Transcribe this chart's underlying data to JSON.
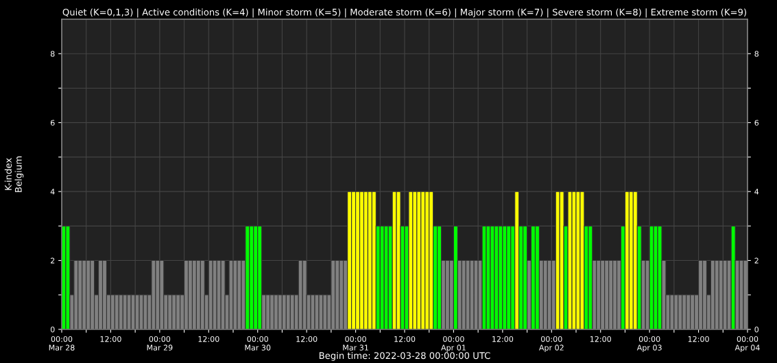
{
  "chart_data": {
    "type": "bar",
    "title": "Quiet (K=0,1,3) | Active conditions (K=4) | Minor storm (K=5) | Moderate storm (K=6) | Major storm (K=7) | Severe storm (K=8) | Extreme storm (K=9)",
    "ylabel": "K-index\nBelgium",
    "xlabel": "Begin time: 2022-03-28 00:00:00 UTC",
    "x": [
      "2022-03-28T00:00",
      "2022-03-28T01:00",
      "2022-03-28T02:00",
      "2022-03-28T03:00",
      "2022-03-28T04:00",
      "2022-03-28T05:00",
      "2022-03-28T06:00",
      "2022-03-28T07:00",
      "2022-03-28T08:00",
      "2022-03-28T09:00",
      "2022-03-28T10:00",
      "2022-03-28T11:00",
      "2022-03-28T12:00",
      "2022-03-28T13:00",
      "2022-03-28T14:00",
      "2022-03-28T15:00",
      "2022-03-28T16:00",
      "2022-03-28T17:00",
      "2022-03-28T18:00",
      "2022-03-28T19:00",
      "2022-03-28T20:00",
      "2022-03-28T21:00",
      "2022-03-28T22:00",
      "2022-03-28T23:00",
      "2022-03-29T00:00",
      "2022-03-29T01:00",
      "2022-03-29T02:00",
      "2022-03-29T03:00",
      "2022-03-29T04:00",
      "2022-03-29T05:00",
      "2022-03-29T06:00",
      "2022-03-29T07:00",
      "2022-03-29T08:00",
      "2022-03-29T09:00",
      "2022-03-29T10:00",
      "2022-03-29T11:00",
      "2022-03-29T12:00",
      "2022-03-29T13:00",
      "2022-03-29T14:00",
      "2022-03-29T15:00",
      "2022-03-29T16:00",
      "2022-03-29T17:00",
      "2022-03-29T18:00",
      "2022-03-29T19:00",
      "2022-03-29T20:00",
      "2022-03-29T21:00",
      "2022-03-29T22:00",
      "2022-03-29T23:00",
      "2022-03-30T00:00",
      "2022-03-30T01:00",
      "2022-03-30T02:00",
      "2022-03-30T03:00",
      "2022-03-30T04:00",
      "2022-03-30T05:00",
      "2022-03-30T06:00",
      "2022-03-30T07:00",
      "2022-03-30T08:00",
      "2022-03-30T09:00",
      "2022-03-30T10:00",
      "2022-03-30T11:00",
      "2022-03-30T12:00",
      "2022-03-30T13:00",
      "2022-03-30T14:00",
      "2022-03-30T15:00",
      "2022-03-30T16:00",
      "2022-03-30T17:00",
      "2022-03-30T18:00",
      "2022-03-30T19:00",
      "2022-03-30T20:00",
      "2022-03-30T21:00",
      "2022-03-30T22:00",
      "2022-03-30T23:00",
      "2022-03-31T00:00",
      "2022-03-31T01:00",
      "2022-03-31T02:00",
      "2022-03-31T03:00",
      "2022-03-31T04:00",
      "2022-03-31T05:00",
      "2022-03-31T06:00",
      "2022-03-31T07:00",
      "2022-03-31T08:00",
      "2022-03-31T09:00",
      "2022-03-31T10:00",
      "2022-03-31T11:00",
      "2022-03-31T12:00",
      "2022-03-31T13:00",
      "2022-03-31T14:00",
      "2022-03-31T15:00",
      "2022-03-31T16:00",
      "2022-03-31T17:00",
      "2022-03-31T18:00",
      "2022-03-31T19:00",
      "2022-03-31T20:00",
      "2022-03-31T21:00",
      "2022-03-31T22:00",
      "2022-03-31T23:00",
      "2022-04-01T00:00",
      "2022-04-01T01:00",
      "2022-04-01T02:00",
      "2022-04-01T03:00",
      "2022-04-01T04:00",
      "2022-04-01T05:00",
      "2022-04-01T06:00",
      "2022-04-01T07:00",
      "2022-04-01T08:00",
      "2022-04-01T09:00",
      "2022-04-01T10:00",
      "2022-04-01T11:00",
      "2022-04-01T12:00",
      "2022-04-01T13:00",
      "2022-04-01T14:00",
      "2022-04-01T15:00",
      "2022-04-01T16:00",
      "2022-04-01T17:00",
      "2022-04-01T18:00",
      "2022-04-01T19:00",
      "2022-04-01T20:00",
      "2022-04-01T21:00",
      "2022-04-01T22:00",
      "2022-04-01T23:00",
      "2022-04-02T00:00",
      "2022-04-02T01:00",
      "2022-04-02T02:00",
      "2022-04-02T03:00",
      "2022-04-02T04:00",
      "2022-04-02T05:00",
      "2022-04-02T06:00",
      "2022-04-02T07:00",
      "2022-04-02T08:00",
      "2022-04-02T09:00",
      "2022-04-02T10:00",
      "2022-04-02T11:00",
      "2022-04-02T12:00",
      "2022-04-02T13:00",
      "2022-04-02T14:00",
      "2022-04-02T15:00",
      "2022-04-02T16:00",
      "2022-04-02T17:00",
      "2022-04-02T18:00",
      "2022-04-02T19:00",
      "2022-04-02T20:00",
      "2022-04-02T21:00",
      "2022-04-02T22:00",
      "2022-04-02T23:00",
      "2022-04-03T00:00",
      "2022-04-03T01:00",
      "2022-04-03T02:00",
      "2022-04-03T03:00",
      "2022-04-03T04:00",
      "2022-04-03T05:00",
      "2022-04-03T06:00",
      "2022-04-03T07:00",
      "2022-04-03T08:00",
      "2022-04-03T09:00",
      "2022-04-03T10:00",
      "2022-04-03T11:00",
      "2022-04-03T12:00",
      "2022-04-03T13:00",
      "2022-04-03T14:00",
      "2022-04-03T15:00",
      "2022-04-03T16:00",
      "2022-04-03T17:00",
      "2022-04-03T18:00",
      "2022-04-03T19:00",
      "2022-04-03T20:00",
      "2022-04-03T21:00",
      "2022-04-03T22:00",
      "2022-04-03T23:00"
    ],
    "values": [
      3,
      3,
      1,
      2,
      2,
      2,
      2,
      2,
      1,
      2,
      2,
      1,
      1,
      1,
      1,
      1,
      1,
      1,
      1,
      1,
      1,
      1,
      2,
      2,
      2,
      1,
      1,
      1,
      1,
      1,
      2,
      2,
      2,
      2,
      2,
      1,
      2,
      2,
      2,
      2,
      1,
      2,
      2,
      2,
      2,
      3,
      3,
      3,
      3,
      1,
      1,
      1,
      1,
      1,
      1,
      1,
      1,
      1,
      2,
      2,
      1,
      1,
      1,
      1,
      1,
      1,
      2,
      2,
      2,
      2,
      4,
      4,
      4,
      4,
      4,
      4,
      4,
      3,
      3,
      3,
      3,
      4,
      4,
      3,
      3,
      4,
      4,
      4,
      4,
      4,
      4,
      3,
      3,
      2,
      2,
      2,
      3,
      2,
      2,
      2,
      2,
      2,
      2,
      3,
      3,
      3,
      3,
      3,
      3,
      3,
      3,
      4,
      3,
      3,
      2,
      3,
      3,
      2,
      2,
      2,
      2,
      4,
      4,
      3,
      4,
      4,
      4,
      4,
      3,
      3,
      2,
      2,
      2,
      2,
      2,
      2,
      2,
      3,
      4,
      4,
      4,
      3,
      2,
      2,
      3,
      3,
      3,
      2,
      1,
      1,
      1,
      1,
      1,
      1,
      1,
      1,
      2,
      2,
      1,
      2,
      2,
      2,
      2,
      2,
      3,
      2,
      2,
      2
    ],
    "colors": [
      "#00ff00",
      "#00ff00",
      "#808080",
      "#808080",
      "#808080",
      "#808080",
      "#808080",
      "#808080",
      "#808080",
      "#808080",
      "#808080",
      "#808080",
      "#808080",
      "#808080",
      "#808080",
      "#808080",
      "#808080",
      "#808080",
      "#808080",
      "#808080",
      "#808080",
      "#808080",
      "#808080",
      "#808080",
      "#808080",
      "#808080",
      "#808080",
      "#808080",
      "#808080",
      "#808080",
      "#808080",
      "#808080",
      "#808080",
      "#808080",
      "#808080",
      "#808080",
      "#808080",
      "#808080",
      "#808080",
      "#808080",
      "#808080",
      "#808080",
      "#808080",
      "#808080",
      "#808080",
      "#00ff00",
      "#00ff00",
      "#00ff00",
      "#00ff00",
      "#808080",
      "#808080",
      "#808080",
      "#808080",
      "#808080",
      "#808080",
      "#808080",
      "#808080",
      "#808080",
      "#808080",
      "#808080",
      "#808080",
      "#808080",
      "#808080",
      "#808080",
      "#808080",
      "#808080",
      "#808080",
      "#808080",
      "#808080",
      "#808080",
      "#ffff00",
      "#ffff00",
      "#ffff00",
      "#ffff00",
      "#ffff00",
      "#ffff00",
      "#ffff00",
      "#00ff00",
      "#00ff00",
      "#00ff00",
      "#00ff00",
      "#ffff00",
      "#ffff00",
      "#00ff00",
      "#00ff00",
      "#ffff00",
      "#ffff00",
      "#ffff00",
      "#ffff00",
      "#ffff00",
      "#ffff00",
      "#00ff00",
      "#00ff00",
      "#808080",
      "#808080",
      "#808080",
      "#00ff00",
      "#808080",
      "#808080",
      "#808080",
      "#808080",
      "#808080",
      "#808080",
      "#00ff00",
      "#00ff00",
      "#00ff00",
      "#00ff00",
      "#00ff00",
      "#00ff00",
      "#00ff00",
      "#00ff00",
      "#ffff00",
      "#00ff00",
      "#00ff00",
      "#808080",
      "#00ff00",
      "#00ff00",
      "#808080",
      "#808080",
      "#808080",
      "#808080",
      "#ffff00",
      "#ffff00",
      "#00ff00",
      "#ffff00",
      "#ffff00",
      "#ffff00",
      "#ffff00",
      "#00ff00",
      "#00ff00",
      "#808080",
      "#808080",
      "#808080",
      "#808080",
      "#808080",
      "#808080",
      "#808080",
      "#00ff00",
      "#ffff00",
      "#ffff00",
      "#ffff00",
      "#00ff00",
      "#808080",
      "#808080",
      "#00ff00",
      "#00ff00",
      "#00ff00",
      "#808080",
      "#808080",
      "#808080",
      "#808080",
      "#808080",
      "#808080",
      "#808080",
      "#808080",
      "#808080",
      "#808080",
      "#808080",
      "#808080",
      "#808080",
      "#808080",
      "#808080",
      "#808080",
      "#808080",
      "#00ff00",
      "#808080",
      "#808080",
      "#808080"
    ],
    "xlim": [
      "2022-03-28T00:00",
      "2022-04-04T00:00"
    ],
    "xticks": [
      {
        "value": "2022-03-28T00:00",
        "label": "00:00\nMar 28"
      },
      {
        "value": "2022-03-28T06:00",
        "label": null
      },
      {
        "value": "2022-03-28T12:00",
        "label": "12:00"
      },
      {
        "value": "2022-03-28T18:00",
        "label": null
      },
      {
        "value": "2022-03-29T00:00",
        "label": "00:00\nMar 29"
      },
      {
        "value": "2022-03-29T06:00",
        "label": null
      },
      {
        "value": "2022-03-29T12:00",
        "label": "12:00"
      },
      {
        "value": "2022-03-29T18:00",
        "label": null
      },
      {
        "value": "2022-03-30T00:00",
        "label": "00:00\nMar 30"
      },
      {
        "value": "2022-03-30T06:00",
        "label": null
      },
      {
        "value": "2022-03-30T12:00",
        "label": "12:00"
      },
      {
        "value": "2022-03-30T18:00",
        "label": null
      },
      {
        "value": "2022-03-31T00:00",
        "label": "00:00\nMar 31"
      },
      {
        "value": "2022-03-31T06:00",
        "label": null
      },
      {
        "value": "2022-03-31T12:00",
        "label": "12:00"
      },
      {
        "value": "2022-03-31T18:00",
        "label": null
      },
      {
        "value": "2022-04-01T00:00",
        "label": "00:00\nApr 01"
      },
      {
        "value": "2022-04-01T06:00",
        "label": null
      },
      {
        "value": "2022-04-01T12:00",
        "label": "12:00"
      },
      {
        "value": "2022-04-01T18:00",
        "label": null
      },
      {
        "value": "2022-04-02T00:00",
        "label": "00:00\nApr 02"
      },
      {
        "value": "2022-04-02T06:00",
        "label": null
      },
      {
        "value": "2022-04-02T12:00",
        "label": "12:00"
      },
      {
        "value": "2022-04-02T18:00",
        "label": null
      },
      {
        "value": "2022-04-03T00:00",
        "label": "00:00\nApr 03"
      },
      {
        "value": "2022-04-03T06:00",
        "label": null
      },
      {
        "value": "2022-04-03T12:00",
        "label": "12:00"
      },
      {
        "value": "2022-04-03T18:00",
        "label": null
      },
      {
        "value": "2022-04-04T00:00",
        "label": "00:00\nApr 04"
      }
    ],
    "ylim": [
      0,
      9
    ],
    "yticks": [
      0,
      {
        "value": 1,
        "label": null
      },
      2,
      {
        "value": 3,
        "label": null
      },
      4,
      {
        "value": 5,
        "label": null
      },
      6,
      {
        "value": 7,
        "label": null
      },
      8
    ],
    "y2lim": [
      0,
      9
    ],
    "y2ticks": [
      0,
      {
        "value": 1,
        "label": null
      },
      2,
      {
        "value": 3,
        "label": null
      },
      4,
      {
        "value": 5,
        "label": null
      },
      6,
      {
        "value": 7,
        "label": null
      },
      8
    ],
    "grid": true
  }
}
